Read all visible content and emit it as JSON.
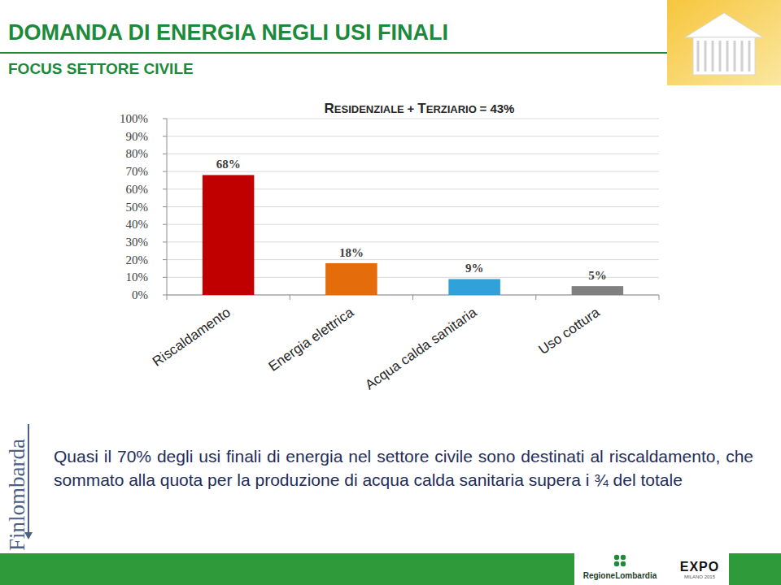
{
  "header": {
    "title": "DOMANDA DI ENERGIA NEGLI USI FINALI",
    "subtitle": "FOCUS SETTORE CIVILE"
  },
  "chart_data": {
    "type": "bar",
    "title": "RESIDENZIALE + TERZIARIO = 43%",
    "categories": [
      "Riscaldamento",
      "Energia elettrica",
      "Acqua calda sanitaria",
      "Uso cottura"
    ],
    "values": [
      68,
      18,
      9,
      5
    ],
    "value_labels": [
      "68%",
      "18%",
      "9%",
      "5%"
    ],
    "colors": [
      "#c00000",
      "#e46c0a",
      "#31a2d9",
      "#808080"
    ],
    "ylim": [
      0,
      100
    ],
    "yticks": [
      {
        "value": 0,
        "label": "0%"
      },
      {
        "value": 10,
        "label": "10%"
      },
      {
        "value": 20,
        "label": "20%"
      },
      {
        "value": 30,
        "label": "30%"
      },
      {
        "value": 40,
        "label": "40%"
      },
      {
        "value": 50,
        "label": "50%"
      },
      {
        "value": 60,
        "label": "60%"
      },
      {
        "value": 70,
        "label": "70%"
      },
      {
        "value": 80,
        "label": "80%"
      },
      {
        "value": 90,
        "label": "90%"
      },
      {
        "value": 100,
        "label": "100%"
      }
    ],
    "grid": true,
    "data_labels": true
  },
  "caption": "Quasi il 70% degli usi finali di energia nel settore civile sono destinati al riscaldamento, che sommato alla quota per la produzione di acqua calda sanitaria supera i ¾ del totale",
  "logos": {
    "left": "Finlombarda",
    "region": "RegioneLombardia",
    "expo": "EXPO",
    "expo_sub": "MILANO 2015"
  }
}
